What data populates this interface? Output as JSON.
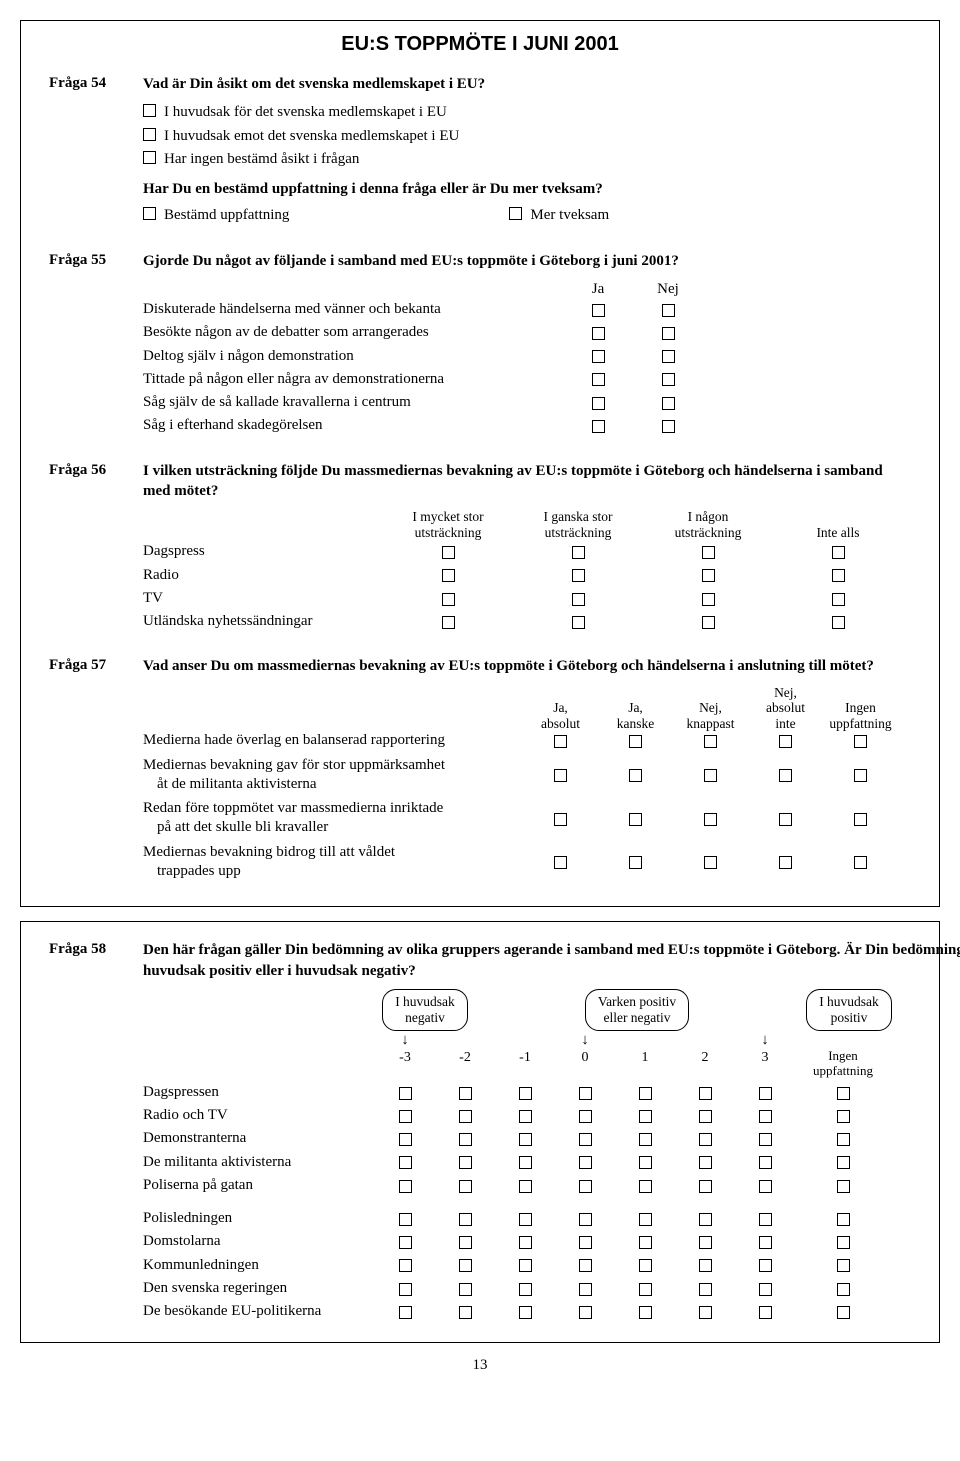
{
  "page_number": "13",
  "main_title": "EU:S TOPPMÖTE I JUNI 2001",
  "q54": {
    "label": "Fråga 54",
    "title": "Vad är Din åsikt om det svenska medlemskapet i EU?",
    "options": [
      "I huvudsak för det svenska medlemskapet i EU",
      "I huvudsak emot det svenska medlemskapet i EU",
      "Har ingen bestämd åsikt i frågan"
    ],
    "sub_q": "Har Du en bestämd uppfattning i denna fråga eller är Du mer tveksam?",
    "sub_options": [
      "Bestämd uppfattning",
      "Mer tveksam"
    ]
  },
  "q55": {
    "label": "Fråga 55",
    "title": "Gjorde Du något av följande i samband med EU:s toppmöte i Göteborg i juni 2001?",
    "col1": "Ja",
    "col2": "Nej",
    "rows": [
      "Diskuterade händelserna med vänner och bekanta",
      "Besökte någon av de debatter som arrangerades",
      "Deltog själv i någon demonstration",
      "Tittade på någon eller några av demonstrationerna",
      "Såg själv de så kallade kravallerna i centrum",
      "Såg i efterhand skadegörelsen"
    ]
  },
  "q56": {
    "label": "Fråga 56",
    "title": "I vilken utsträckning följde Du massmediernas bevakning av EU:s toppmöte i Göteborg och händelserna i samband med mötet?",
    "cols": [
      {
        "l1": "I mycket stor",
        "l2": "utsträckning"
      },
      {
        "l1": "I ganska stor",
        "l2": "utsträckning"
      },
      {
        "l1": "I någon",
        "l2": "utsträckning"
      },
      {
        "l1": "",
        "l2": "Inte alls"
      }
    ],
    "rows": [
      "Dagspress",
      "Radio",
      "TV",
      "Utländska nyhetssändningar"
    ]
  },
  "q57": {
    "label": "Fråga 57",
    "title": "Vad anser Du om massmediernas bevakning av EU:s toppmöte i Göteborg och händelserna i anslutning till mötet?",
    "cols": [
      {
        "l1": "",
        "l2": "Ja,",
        "l3": "absolut"
      },
      {
        "l1": "",
        "l2": "Ja,",
        "l3": "kanske"
      },
      {
        "l1": "",
        "l2": "Nej,",
        "l3": "knappast"
      },
      {
        "l1": "Nej,",
        "l2": "absolut",
        "l3": "inte"
      },
      {
        "l1": "",
        "l2": "Ingen",
        "l3": "uppfattning"
      }
    ],
    "rows": [
      {
        "l1": "Medierna hade överlag en balanserad rapportering",
        "l2": ""
      },
      {
        "l1": "Mediernas bevakning gav för stor uppmärksamhet",
        "l2": "åt de militanta aktivisterna"
      },
      {
        "l1": "Redan före toppmötet var massmedierna inriktade",
        "l2": "på att det skulle bli kravaller"
      },
      {
        "l1": "Mediernas bevakning bidrog till att våldet",
        "l2": "trappades upp"
      }
    ]
  },
  "q58": {
    "label": "Fråga 58",
    "title": "Den här frågan gäller Din bedömning av olika gruppers agerande i samband med EU:s toppmöte i Göteborg. Är Din bedömning i huvudsak positiv eller i huvudsak negativ?",
    "box_left": {
      "l1": "I huvudsak",
      "l2": "negativ"
    },
    "box_mid": {
      "l1": "Varken positiv",
      "l2": "eller negativ"
    },
    "box_right": {
      "l1": "I huvudsak",
      "l2": "positiv"
    },
    "nums": [
      "-3",
      "-2",
      "-1",
      "0",
      "1",
      "2",
      "3"
    ],
    "last_col": {
      "l1": "Ingen",
      "l2": "uppfattning"
    },
    "group1": [
      "Dagspressen",
      "Radio och TV",
      "Demonstranterna",
      "De militanta aktivisterna",
      "Poliserna på gatan"
    ],
    "group2": [
      "Polisledningen",
      "Domstolarna",
      "Kommunledningen",
      "Den svenska regeringen",
      "De besökande EU-politikerna"
    ]
  }
}
